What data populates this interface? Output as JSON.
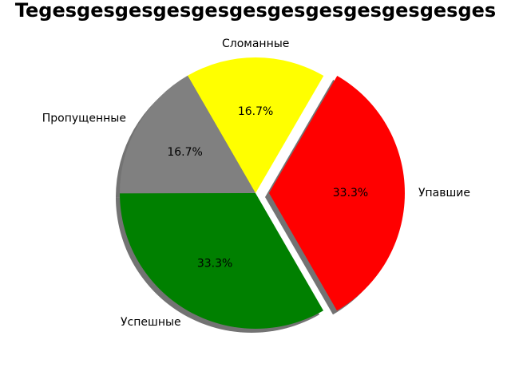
{
  "chart_data": {
    "type": "pie",
    "title": "Tegesgesgesgesgesgesgesgesgesgesgesges",
    "slices": [
      {
        "label": "Упавшие",
        "value": 33.3,
        "pct_label": "33.3%",
        "color": "#ff0000",
        "exploded": true
      },
      {
        "label": "Сломанные",
        "value": 16.7,
        "pct_label": "16.7%",
        "color": "#ffff00",
        "exploded": false
      },
      {
        "label": "Пропущенные",
        "value": 16.7,
        "pct_label": "16.7%",
        "color": "#808080",
        "exploded": false
      },
      {
        "label": "Успешные",
        "value": 33.3,
        "pct_label": "33.3%",
        "color": "#008000",
        "exploded": false
      }
    ],
    "start_angle_deg": -60,
    "direction": "counterclockwise",
    "shadow": true,
    "legend": "none"
  }
}
